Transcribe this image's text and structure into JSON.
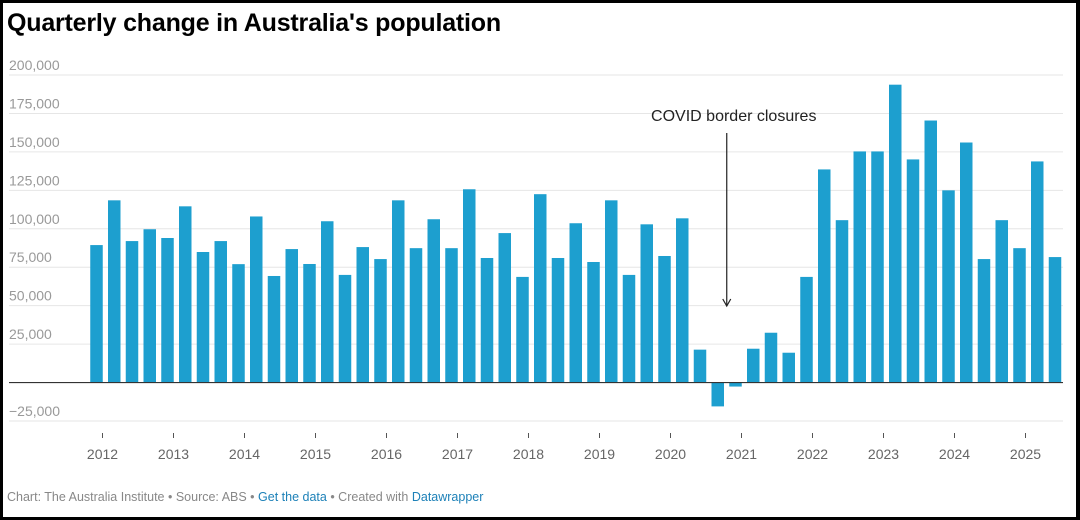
{
  "title": "Quarterly change in Australia's population",
  "footer": {
    "chart_credit": "Chart: The Australia Institute",
    "separator": " • ",
    "source": "Source: ABS",
    "get_data_link": "Get the data",
    "created_with": "Created with",
    "datawrapper_link": "Datawrapper"
  },
  "colors": {
    "bar": "#1d9fcf",
    "gridline": "#e6e6e6",
    "baseline": "#333333",
    "link": "#1d81b8"
  },
  "chart_data": {
    "type": "bar",
    "title": "Quarterly change in Australia's population",
    "xlabel": "",
    "ylabel": "",
    "ylim": [
      -25000,
      200000
    ],
    "yticks": [
      200000,
      175000,
      150000,
      125000,
      100000,
      75000,
      50000,
      25000,
      0,
      -25000
    ],
    "ytick_labels": [
      "200,000",
      "175,000",
      "150,000",
      "125,000",
      "100,000",
      "75,000",
      "50,000",
      "25,000",
      "",
      "−25,000"
    ],
    "xticks": [
      "2012",
      "2013",
      "2014",
      "2015",
      "2016",
      "2017",
      "2018",
      "2019",
      "2020",
      "2021",
      "2022",
      "2023",
      "2024",
      "2025"
    ],
    "grid": true,
    "legend": "none",
    "categories": [
      "Dec 2011",
      "Mar 2012",
      "Jun 2012",
      "Sep 2012",
      "Dec 2012",
      "Mar 2013",
      "Jun 2013",
      "Sep 2013",
      "Dec 2013",
      "Mar 2014",
      "Jun 2014",
      "Sep 2014",
      "Dec 2014",
      "Mar 2015",
      "Jun 2015",
      "Sep 2015",
      "Dec 2015",
      "Mar 2016",
      "Jun 2016",
      "Sep 2016",
      "Dec 2016",
      "Mar 2017",
      "Jun 2017",
      "Sep 2017",
      "Dec 2017",
      "Mar 2018",
      "Jun 2018",
      "Sep 2018",
      "Dec 2018",
      "Mar 2019",
      "Jun 2019",
      "Sep 2019",
      "Dec 2019",
      "Mar 2020",
      "Jun 2020",
      "Sep 2020",
      "Dec 2020",
      "Mar 2021",
      "Jun 2021",
      "Sep 2021",
      "Dec 2021",
      "Mar 2022",
      "Jun 2022",
      "Sep 2022",
      "Dec 2022",
      "Mar 2023",
      "Jun 2023",
      "Sep 2023",
      "Dec 2023",
      "Mar 2024",
      "Jun 2024",
      "Sep 2024",
      "Dec 2024",
      "Mar 2025",
      "Jun 2025"
    ],
    "values": [
      89400,
      118500,
      92000,
      99700,
      94000,
      114600,
      84900,
      92000,
      77000,
      108000,
      69300,
      86800,
      77100,
      104900,
      70000,
      88100,
      80300,
      118500,
      87400,
      106200,
      87400,
      125700,
      81000,
      97200,
      68700,
      122500,
      81000,
      103600,
      78400,
      118500,
      70000,
      102900,
      82300,
      106800,
      21400,
      -15500,
      -2600,
      22000,
      32400,
      19400,
      68700,
      138600,
      105600,
      150300,
      150300,
      193700,
      145100,
      170400,
      125000,
      156100,
      80300,
      105600,
      87400,
      143800,
      81600
    ],
    "annotations": [
      {
        "text": "COVID border closures",
        "points_to": "Sep 2020",
        "arrow": true
      }
    ]
  }
}
